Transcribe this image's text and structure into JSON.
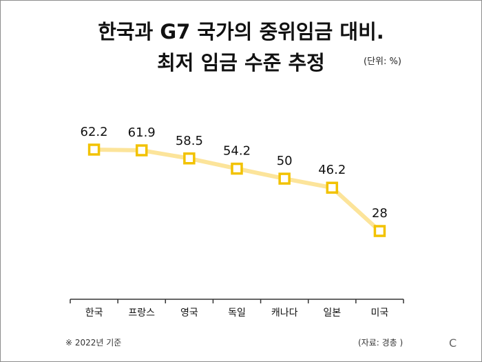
{
  "title_line1": "한국과 G7 국가의 중위임금 대비.",
  "title_line2": "최저 임금 수준 추정",
  "unit": "(단위: %)",
  "note": "※ 2022년 기준",
  "source": "(자료: 경총 )",
  "corner_mark": "C",
  "colors": {
    "line": "#FCE49A",
    "marker_stroke": "#F2C200",
    "marker_fill": "#FFFFFF",
    "axis": "#333333",
    "text": "#111111"
  },
  "chart_data": {
    "type": "line",
    "categories": [
      "한국",
      "프랑스",
      "영국",
      "독일",
      "캐나다",
      "일본",
      "미국"
    ],
    "series": [
      {
        "values": [
          62.2,
          61.9,
          58.5,
          54.2,
          50,
          46.2,
          28
        ]
      }
    ],
    "data_labels": [
      "62.2",
      "61.9",
      "58.5",
      "54.2",
      "50",
      "46.2",
      "28"
    ],
    "ylim": [
      0,
      100
    ],
    "grid": false,
    "legend": "none"
  }
}
